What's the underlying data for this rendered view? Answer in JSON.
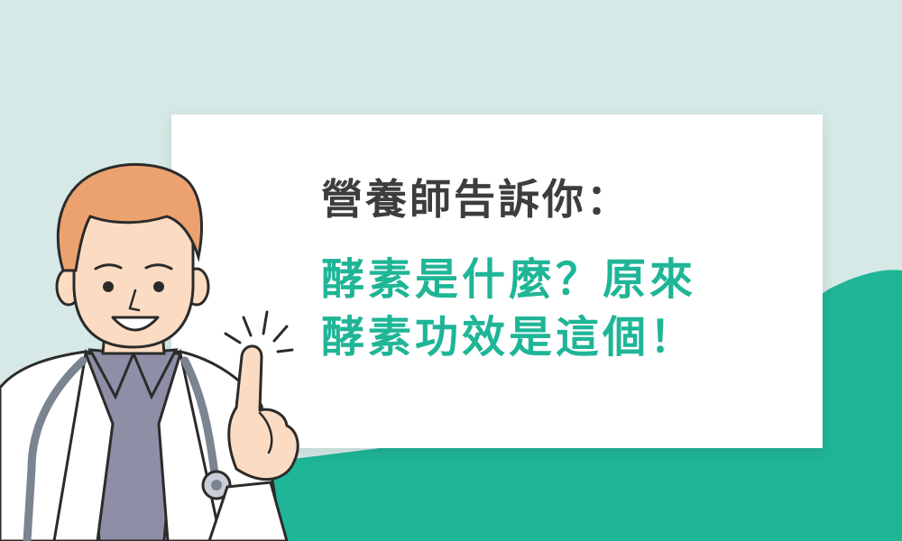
{
  "banner": {
    "title": "營養師告訴你：",
    "headline_line1": "酵素是什麼？原來",
    "headline_line2": "酵素功效是這個！"
  },
  "colors": {
    "background": "#d6e9e6",
    "accent_teal": "#1fb597",
    "title_text": "#3d3d3d",
    "card": "#ffffff"
  },
  "illustration": {
    "subject": "doctor-pointing-up-illustration"
  }
}
